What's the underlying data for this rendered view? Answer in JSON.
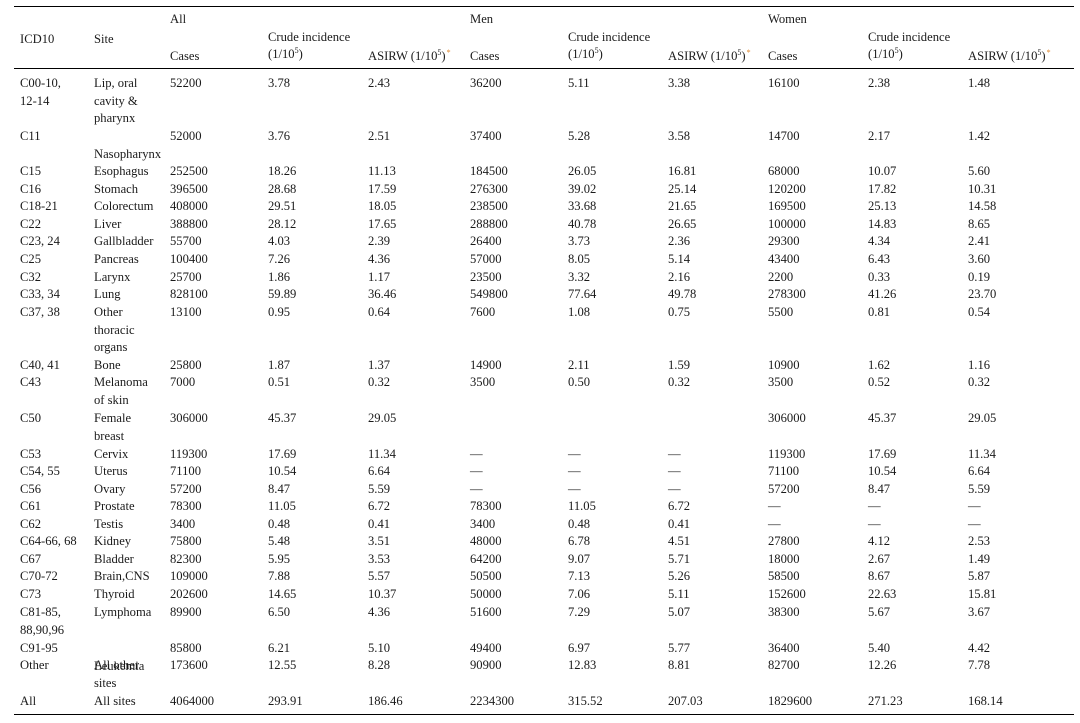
{
  "header": {
    "icd": "ICD10",
    "site": "Site",
    "groups": {
      "all": "All",
      "men": "Men",
      "women": "Women"
    },
    "cases": "Cases",
    "crude_line1": "Crude incidence",
    "crude_line2_prefix": "(1/10",
    "crude_exp": "5",
    "crude_line2_suffix": ")",
    "asirw_prefix": "ASIRW (1/10",
    "asirw_exp": "5",
    "asirw_suffix": ")",
    "asirw_mark": "*"
  },
  "rows": [
    {
      "icd": [
        "C00-10,",
        "12-14"
      ],
      "site": [
        "Lip, oral",
        "cavity &",
        "pharynx"
      ],
      "v": [
        "52200",
        "3.78",
        "2.43",
        "36200",
        "5.11",
        "3.38",
        "16100",
        "2.38",
        "1.48"
      ]
    },
    {
      "icd": [
        "C11"
      ],
      "site": [
        "",
        "Nasopharynx"
      ],
      "v": [
        "52000",
        "3.76",
        "2.51",
        "37400",
        "5.28",
        "3.58",
        "14700",
        "2.17",
        "1.42"
      ]
    },
    {
      "icd": [
        "C15"
      ],
      "site": [
        "Esophagus"
      ],
      "v": [
        "252500",
        "18.26",
        "11.13",
        "184500",
        "26.05",
        "16.81",
        "68000",
        "10.07",
        "5.60"
      ]
    },
    {
      "icd": [
        "C16"
      ],
      "site": [
        "Stomach"
      ],
      "v": [
        "396500",
        "28.68",
        "17.59",
        "276300",
        "39.02",
        "25.14",
        "120200",
        "17.82",
        "10.31"
      ]
    },
    {
      "icd": [
        "C18-21"
      ],
      "site": [
        "Colorectum"
      ],
      "v": [
        "408000",
        "29.51",
        "18.05",
        "238500",
        "33.68",
        "21.65",
        "169500",
        "25.13",
        "14.58"
      ]
    },
    {
      "icd": [
        "C22"
      ],
      "site": [
        "Liver"
      ],
      "v": [
        "388800",
        "28.12",
        "17.65",
        "288800",
        "40.78",
        "26.65",
        "100000",
        "14.83",
        "8.65"
      ]
    },
    {
      "icd": [
        "C23, 24"
      ],
      "site": [
        "Gallbladder"
      ],
      "v": [
        "55700",
        "4.03",
        "2.39",
        "26400",
        "3.73",
        "2.36",
        "29300",
        "4.34",
        "2.41"
      ]
    },
    {
      "icd": [
        "C25"
      ],
      "site": [
        "Pancreas"
      ],
      "v": [
        "100400",
        "7.26",
        "4.36",
        "57000",
        "8.05",
        "5.14",
        "43400",
        "6.43",
        "3.60"
      ]
    },
    {
      "icd": [
        "C32"
      ],
      "site": [
        "Larynx"
      ],
      "v": [
        "25700",
        "1.86",
        "1.17",
        "23500",
        "3.32",
        "2.16",
        "2200",
        "0.33",
        "0.19"
      ]
    },
    {
      "icd": [
        "C33, 34"
      ],
      "site": [
        "Lung"
      ],
      "v": [
        "828100",
        "59.89",
        "36.46",
        "549800",
        "77.64",
        "49.78",
        "278300",
        "41.26",
        "23.70"
      ]
    },
    {
      "icd": [
        "C37, 38"
      ],
      "site": [
        "Other",
        "thoracic",
        "organs"
      ],
      "v": [
        "13100",
        "0.95",
        "0.64",
        "7600",
        "1.08",
        "0.75",
        "5500",
        "0.81",
        "0.54"
      ]
    },
    {
      "icd": [
        "C40, 41"
      ],
      "site": [
        "Bone"
      ],
      "v": [
        "25800",
        "1.87",
        "1.37",
        "14900",
        "2.11",
        "1.59",
        "10900",
        "1.62",
        "1.16"
      ]
    },
    {
      "icd": [
        "C43"
      ],
      "site": [
        "Melanoma",
        "of skin"
      ],
      "v": [
        "7000",
        "0.51",
        "0.32",
        "3500",
        "0.50",
        "0.32",
        "3500",
        "0.52",
        "0.32"
      ]
    },
    {
      "icd": [
        "C50"
      ],
      "site": [
        "Female",
        "breast"
      ],
      "v": [
        "306000",
        "45.37",
        "29.05",
        "",
        "",
        "",
        "306000",
        "45.37",
        "29.05"
      ]
    },
    {
      "icd": [
        "C53"
      ],
      "site": [
        "Cervix"
      ],
      "v": [
        "119300",
        "17.69",
        "11.34",
        "—",
        "—",
        "—",
        "119300",
        "17.69",
        "11.34"
      ]
    },
    {
      "icd": [
        "C54, 55"
      ],
      "site": [
        "Uterus"
      ],
      "v": [
        "71100",
        "10.54",
        "6.64",
        "—",
        "—",
        "—",
        "71100",
        "10.54",
        "6.64"
      ]
    },
    {
      "icd": [
        "C56"
      ],
      "site": [
        "Ovary"
      ],
      "v": [
        "57200",
        "8.47",
        "5.59",
        "—",
        "—",
        "—",
        "57200",
        "8.47",
        "5.59"
      ]
    },
    {
      "icd": [
        "C61"
      ],
      "site": [
        "Prostate"
      ],
      "v": [
        "78300",
        "11.05",
        "6.72",
        "78300",
        "11.05",
        "6.72",
        "—",
        "—",
        "—"
      ]
    },
    {
      "icd": [
        "C62"
      ],
      "site": [
        "Testis"
      ],
      "v": [
        "3400",
        "0.48",
        "0.41",
        "3400",
        "0.48",
        "0.41",
        "—",
        "—",
        "—"
      ]
    },
    {
      "icd": [
        "C64-66, 68"
      ],
      "site": [
        "Kidney"
      ],
      "v": [
        "75800",
        "5.48",
        "3.51",
        "48000",
        "6.78",
        "4.51",
        "27800",
        "4.12",
        "2.53"
      ]
    },
    {
      "icd": [
        "C67"
      ],
      "site": [
        "Bladder"
      ],
      "v": [
        "82300",
        "5.95",
        "3.53",
        "64200",
        "9.07",
        "5.71",
        "18000",
        "2.67",
        "1.49"
      ]
    },
    {
      "icd": [
        "C70-72"
      ],
      "site": [
        "Brain,CNS"
      ],
      "v": [
        "109000",
        "7.88",
        "5.57",
        "50500",
        "7.13",
        "5.26",
        "58500",
        "8.67",
        "5.87"
      ]
    },
    {
      "icd": [
        "C73"
      ],
      "site": [
        "Thyroid"
      ],
      "v": [
        "202600",
        "14.65",
        "10.37",
        "50000",
        "7.06",
        "5.11",
        "152600",
        "22.63",
        "15.81"
      ]
    },
    {
      "icd": [
        "C81-85,",
        "88,90,96"
      ],
      "site": [
        "Lymphoma"
      ],
      "v": [
        "89900",
        "6.50",
        "4.36",
        "51600",
        "7.29",
        "5.07",
        "38300",
        "5.67",
        "3.67"
      ]
    },
    {
      "icd": [
        "C91-95"
      ],
      "site": [
        "",
        "Leukemia"
      ],
      "v": [
        "85800",
        "6.21",
        "5.10",
        "49400",
        "6.97",
        "5.77",
        "36400",
        "5.40",
        "4.42"
      ]
    },
    {
      "icd": [
        "Other"
      ],
      "site": [
        "All other",
        "sites"
      ],
      "v": [
        "173600",
        "12.55",
        "8.28",
        "90900",
        "12.83",
        "8.81",
        "82700",
        "12.26",
        "7.78"
      ]
    },
    {
      "icd": [
        "All"
      ],
      "site": [
        "All sites"
      ],
      "v": [
        "4064000",
        "293.91",
        "186.46",
        "2234300",
        "315.52",
        "207.03",
        "1829600",
        "271.23",
        "168.14"
      ]
    }
  ]
}
